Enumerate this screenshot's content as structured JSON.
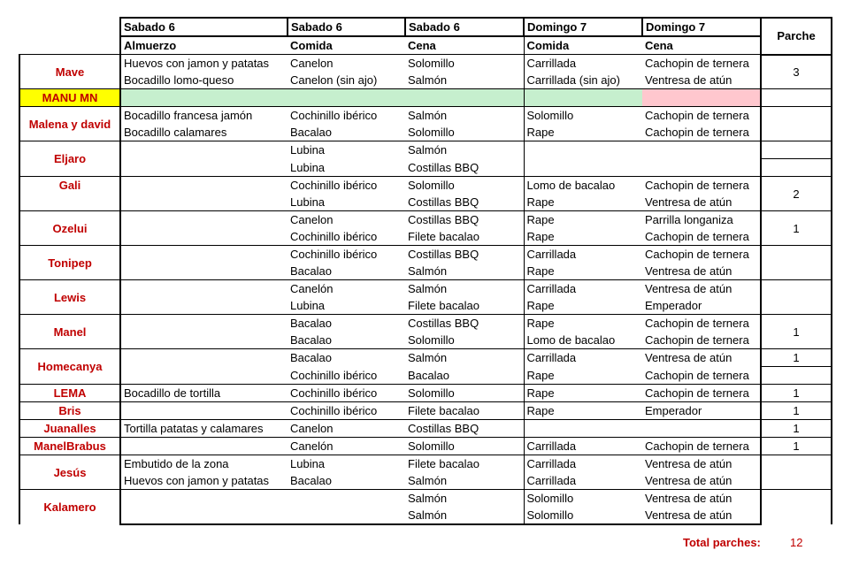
{
  "header": {
    "days": [
      "Sabado 6",
      "Sabado 6",
      "Sabado 6",
      "Domingo 7",
      "Domingo 7"
    ],
    "meals": [
      "Almuerzo",
      "Comida",
      "Cena",
      "Comida",
      "Cena"
    ],
    "parche_label": "Parche"
  },
  "colors": {
    "name": "#c00000",
    "highlight_yellow": "#ffff00",
    "green": "#c6efce",
    "pink": "#ffc7ce"
  },
  "groups": [
    {
      "name": "Mave",
      "rows": [
        [
          "Huevos con jamon y patatas",
          "Canelon",
          "Solomillo",
          "Carrillada",
          "Cachopin de ternera"
        ],
        [
          "Bocadillo lomo-queso",
          "Canelon (sin ajo)",
          "Salmón",
          "Carrillada (sin ajo)",
          "Ventresa de atún"
        ]
      ],
      "parche": "3"
    },
    {
      "name": "MANU MN",
      "rows": [
        [
          "",
          "",
          "",
          "",
          ""
        ]
      ],
      "parche": "",
      "highlight": true
    },
    {
      "name": "Malena y david",
      "rows": [
        [
          "Bocadillo francesa jamón",
          "Cochinillo ibérico",
          "Salmón",
          "Solomillo",
          "Cachopin de ternera"
        ],
        [
          "Bocadillo calamares",
          "Bacalao",
          "Solomillo",
          "Rape",
          "Cachopin de ternera"
        ]
      ],
      "parche": ""
    },
    {
      "name": "Eljaro",
      "rows": [
        [
          "",
          "Lubina",
          "Salmón",
          "",
          ""
        ],
        [
          "",
          "Lubina",
          "Costillas BBQ",
          "",
          ""
        ]
      ],
      "parche": "",
      "split": true
    },
    {
      "name": "Gali",
      "rows": [
        [
          "",
          "Cochinillo ibérico",
          "Solomillo",
          "Lomo de bacalao",
          "Cachopin de ternera"
        ],
        [
          "",
          "Lubina",
          "Costillas BBQ",
          "Rape",
          "Ventresa de atún"
        ]
      ],
      "parche": "2",
      "name_top": true
    },
    {
      "name": "Ozelui",
      "rows": [
        [
          "",
          "Canelon",
          "Costillas BBQ",
          "Rape",
          "Parrilla longaniza"
        ],
        [
          "",
          "Cochinillo ibérico",
          "Filete bacalao",
          "Rape",
          "Cachopin de ternera"
        ]
      ],
      "parche": "1"
    },
    {
      "name": "Tonipep",
      "rows": [
        [
          "",
          "Cochinillo ibérico",
          "Costillas BBQ",
          "Carrillada",
          "Cachopin de ternera"
        ],
        [
          "",
          "Bacalao",
          "Salmón",
          "Rape",
          "Ventresa de atún"
        ]
      ],
      "parche": ""
    },
    {
      "name": "Lewis",
      "rows": [
        [
          "",
          "Canelón",
          "Salmón",
          "Carrillada",
          "Ventresa de atún"
        ],
        [
          "",
          "Lubina",
          "Filete bacalao",
          "Rape",
          "Emperador"
        ]
      ],
      "parche": ""
    },
    {
      "name": "Manel",
      "rows": [
        [
          "",
          "Bacalao",
          "Costillas BBQ",
          "Rape",
          "Cachopin de ternera"
        ],
        [
          "",
          "Bacalao",
          "Solomillo",
          "Lomo de bacalao",
          "Cachopin de ternera"
        ]
      ],
      "parche": "1"
    },
    {
      "name": "Homecanya",
      "rows": [
        [
          "",
          "Bacalao",
          "Salmón",
          "Carrillada",
          "Ventresa de atún"
        ],
        [
          "",
          "Cochinillo ibérico",
          "Bacalao",
          "Rape",
          "Cachopin de ternera"
        ]
      ],
      "parche": "1",
      "split": true
    },
    {
      "name": "LEMA",
      "rows": [
        [
          "Bocadillo de tortilla",
          "Cochinillo ibérico",
          "Solomillo",
          "Rape",
          "Cachopin de ternera"
        ]
      ],
      "parche": "1"
    },
    {
      "name": "Bris",
      "rows": [
        [
          "",
          "Cochinillo ibérico",
          "Filete bacalao",
          "Rape",
          "Emperador"
        ]
      ],
      "parche": "1"
    },
    {
      "name": "Juanalles",
      "rows": [
        [
          "Tortilla patatas y calamares",
          "Canelon",
          "Costillas BBQ",
          "",
          ""
        ]
      ],
      "parche": "1"
    },
    {
      "name": "ManelBrabus",
      "rows": [
        [
          "",
          "Canelón",
          "Solomillo",
          "Carrillada",
          "Cachopin de ternera"
        ]
      ],
      "parche": "1"
    },
    {
      "name": "Jesús",
      "rows": [
        [
          "Embutido de la zona",
          "Lubina",
          "Filete bacalao",
          "Carrillada",
          "Ventresa de atún"
        ],
        [
          "Huevos con jamon y patatas",
          "Bacalao",
          "Salmón",
          "Carrillada",
          "Ventresa de atún"
        ]
      ],
      "parche": ""
    },
    {
      "name": "Kalamero",
      "rows": [
        [
          "",
          "",
          "Salmón",
          "Solomillo",
          "Ventresa de atún"
        ],
        [
          "",
          "",
          "Salmón",
          "Solomillo",
          "Ventresa de atún"
        ]
      ],
      "parche": ""
    }
  ],
  "total": {
    "label": "Total parches:",
    "value": "12"
  }
}
